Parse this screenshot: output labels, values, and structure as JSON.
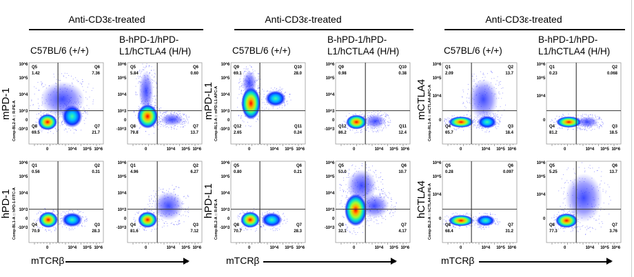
{
  "figure": {
    "groups": [
      {
        "title": "Anti-CD3ε-treated",
        "columns": [
          "C57BL/6 (+/+)",
          "B-hPD-1/hPD-L1/hCTLA4 (H/H)"
        ],
        "column2_lines": [
          "B-hPD-1/hPD-",
          "L1/hCTLA4 (H/H)"
        ],
        "rows": [
          {
            "marker": "mPD-1",
            "channel": "Comp-BL2-A :: R-PE-A"
          },
          {
            "marker": "hPD-1",
            "channel": "Comp-BL1-A :: hPD-1-FITC-A"
          }
        ],
        "xlabel": "mTCRβ"
      },
      {
        "title": "Anti-CD3ε-treated",
        "columns": [
          "C57BL/6 (+/+)",
          "B-hPD-1/hPD-L1/hCTLA4 (H/H)"
        ],
        "column2_lines": [
          "B-hPD-1/hPD-",
          "L1/hCTLA4 (H/H)"
        ],
        "rows": [
          {
            "marker": "mPD-L1",
            "channel": "Comp-RL1-A :: mPD-L1-APC-A"
          },
          {
            "marker": "hPD-L1",
            "channel": "Comp-BL2-A :: R-PE-A"
          }
        ],
        "xlabel": "mTCRβ"
      },
      {
        "title": "Anti-CD3ε-treated",
        "columns": [
          "C57BL/6 (+/+)",
          "B-hPD-1/hPD-L1/hCTLA4 (H/H)"
        ],
        "column2_lines": [
          "B-hPD-1/hPD-",
          "L1/hCTLA4 (H/H)"
        ],
        "rows": [
          {
            "marker": "mCTLA4",
            "channel": "Comp-RL1-A :: mCTLA4-APC-A"
          },
          {
            "marker": "hCTLA4",
            "channel": "Comp-BL2-A :: hCTLA4-R-PE-A"
          }
        ],
        "xlabel": "mTCRβ"
      }
    ],
    "x_ticks": [
      "0",
      "10^4",
      "10^5",
      "10^6"
    ],
    "y_ticks_full": [
      "10^6",
      "10^5",
      "10^4",
      "10^3",
      "0",
      "-10^3"
    ],
    "y_ticks_short": [
      "10^6",
      "10^5",
      "10^4",
      "0"
    ]
  },
  "chart_data": {
    "type": "scatter",
    "description_type": "flow cytometry quadrant plots",
    "plots": [
      {
        "group": 0,
        "row": 0,
        "col": 0,
        "quadrants": {
          "UL": [
            "Q5",
            "1.42"
          ],
          "UR": [
            "Q6",
            "7.36"
          ],
          "LL": [
            "Q8",
            "69.5"
          ],
          "LR": [
            "Q7",
            "21.7"
          ]
        }
      },
      {
        "group": 0,
        "row": 0,
        "col": 1,
        "quadrants": {
          "UL": [
            "Q5",
            "5.84"
          ],
          "UR": [
            "Q6",
            "0.60"
          ],
          "LL": [
            "Q8",
            "79.8"
          ],
          "LR": [
            "Q7",
            "13.7"
          ]
        }
      },
      {
        "group": 0,
        "row": 1,
        "col": 0,
        "quadrants": {
          "UL": [
            "Q1",
            "0.56"
          ],
          "UR": [
            "Q2",
            "0.31"
          ],
          "LL": [
            "Q4",
            "70.9"
          ],
          "LR": [
            "Q3",
            "28.3"
          ]
        }
      },
      {
        "group": 0,
        "row": 1,
        "col": 1,
        "quadrants": {
          "UL": [
            "Q1",
            "4.96"
          ],
          "UR": [
            "Q2",
            "6.27"
          ],
          "LL": [
            "Q4",
            "81.6"
          ],
          "LR": [
            "Q3",
            "7.12"
          ]
        }
      },
      {
        "group": 1,
        "row": 0,
        "col": 0,
        "quadrants": {
          "UL": [
            "Q9",
            "69.1"
          ],
          "UR": [
            "Q10",
            "28.0"
          ],
          "LL": [
            "Q12",
            "2.65"
          ],
          "LR": [
            "Q11",
            "0.24"
          ]
        }
      },
      {
        "group": 1,
        "row": 0,
        "col": 1,
        "quadrants": {
          "UL": [
            "Q9",
            "0.98"
          ],
          "UR": [
            "Q10",
            "0.38"
          ],
          "LL": [
            "Q12",
            "86.2"
          ],
          "LR": [
            "Q11",
            "12.4"
          ]
        }
      },
      {
        "group": 1,
        "row": 1,
        "col": 0,
        "quadrants": {
          "UL": [
            "Q5",
            "0.80"
          ],
          "UR": [
            "Q6",
            "0.21"
          ],
          "LL": [
            "Q8",
            "70.7"
          ],
          "LR": [
            "Q7",
            "28.3"
          ]
        }
      },
      {
        "group": 1,
        "row": 1,
        "col": 1,
        "quadrants": {
          "UL": [
            "Q5",
            "53.0"
          ],
          "UR": [
            "Q6",
            "10.7"
          ],
          "LL": [
            "Q8",
            "32.1"
          ],
          "LR": [
            "Q7",
            "4.17"
          ]
        }
      },
      {
        "group": 2,
        "row": 0,
        "col": 0,
        "quadrants": {
          "UL": [
            "Q1",
            "2.09"
          ],
          "UR": [
            "Q2",
            "13.7"
          ],
          "LL": [
            "Q4",
            "65.7"
          ],
          "LR": [
            "Q3",
            "18.4"
          ]
        }
      },
      {
        "group": 2,
        "row": 0,
        "col": 1,
        "quadrants": {
          "UL": [
            "Q1",
            "0.23"
          ],
          "UR": [
            "Q2",
            "0.068"
          ],
          "LL": [
            "Q4",
            "81.2"
          ],
          "LR": [
            "Q3",
            "18.5"
          ]
        }
      },
      {
        "group": 2,
        "row": 1,
        "col": 0,
        "quadrants": {
          "UL": [
            "Q5",
            "0.28"
          ],
          "UR": [
            "Q6",
            "0.097"
          ],
          "LL": [
            "Q8",
            "68.4"
          ],
          "LR": [
            "Q7",
            "31.2"
          ]
        }
      },
      {
        "group": 2,
        "row": 1,
        "col": 1,
        "quadrants": {
          "UL": [
            "Q5",
            "5.25"
          ],
          "UR": [
            "Q6",
            "13.7"
          ],
          "LL": [
            "Q8",
            "77.3"
          ],
          "LR": [
            "Q7",
            "3.76"
          ]
        }
      }
    ],
    "xlabel": "mTCRβ",
    "colors": {
      "dense": "#ff0000",
      "mid": "#00e0a0",
      "sparse": "#2020ff"
    }
  }
}
